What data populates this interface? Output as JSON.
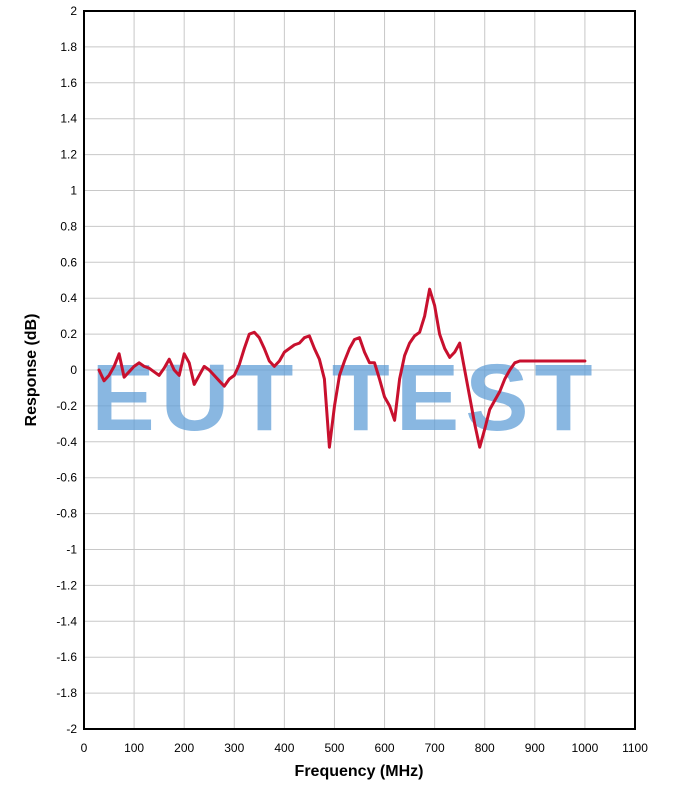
{
  "chart_data": {
    "type": "line",
    "xlabel": "Frequency (MHz)",
    "ylabel": "Response (dB)",
    "xlim": [
      0,
      1100
    ],
    "ylim": [
      -2,
      2
    ],
    "x_ticks": [
      0,
      100,
      200,
      300,
      400,
      500,
      600,
      700,
      800,
      900,
      1000,
      1100
    ],
    "y_ticks": [
      2,
      1.8,
      1.6,
      1.4,
      1.2,
      1,
      0.8,
      0.6,
      0.4,
      0.2,
      0,
      -0.2,
      -0.4,
      -0.6,
      -0.8,
      -1,
      -1.2,
      -1.4,
      -1.6,
      -1.8,
      -2
    ],
    "grid": true,
    "line_color": "#c8102e",
    "series": [
      {
        "x": [
          30,
          40,
          50,
          60,
          70,
          80,
          90,
          100,
          110,
          120,
          130,
          140,
          150,
          160,
          170,
          180,
          190,
          200,
          210,
          220,
          230,
          240,
          250,
          260,
          270,
          280,
          290,
          300,
          310,
          320,
          330,
          340,
          350,
          360,
          370,
          380,
          390,
          400,
          410,
          420,
          430,
          440,
          450,
          460,
          470,
          480,
          490,
          500,
          510,
          520,
          530,
          540,
          550,
          560,
          570,
          580,
          590,
          600,
          610,
          620,
          630,
          640,
          650,
          660,
          670,
          680,
          690,
          700,
          710,
          720,
          730,
          740,
          750,
          760,
          770,
          780,
          790,
          800,
          810,
          820,
          830,
          840,
          850,
          860,
          870,
          880,
          890,
          900,
          910,
          920,
          930,
          940,
          950,
          960,
          970,
          980,
          990,
          1000
        ],
        "values": [
          0.0,
          -0.06,
          -0.03,
          0.02,
          0.09,
          -0.04,
          -0.01,
          0.02,
          0.04,
          0.02,
          0.01,
          -0.01,
          -0.03,
          0.01,
          0.06,
          0.0,
          -0.03,
          0.09,
          0.04,
          -0.08,
          -0.03,
          0.02,
          0.0,
          -0.03,
          -0.06,
          -0.09,
          -0.05,
          -0.03,
          0.03,
          0.12,
          0.2,
          0.21,
          0.18,
          0.12,
          0.05,
          0.02,
          0.05,
          0.1,
          0.12,
          0.14,
          0.15,
          0.18,
          0.19,
          0.12,
          0.06,
          -0.05,
          -0.43,
          -0.2,
          -0.03,
          0.05,
          0.12,
          0.17,
          0.18,
          0.1,
          0.04,
          0.04,
          -0.05,
          -0.15,
          -0.2,
          -0.28,
          -0.05,
          0.08,
          0.15,
          0.19,
          0.21,
          0.3,
          0.45,
          0.36,
          0.2,
          0.12,
          0.07,
          0.1,
          0.15,
          0.0,
          -0.15,
          -0.3,
          -0.43,
          -0.33,
          -0.22,
          -0.17,
          -0.12,
          -0.05,
          0.0,
          0.04,
          0.05,
          0.05,
          0.05,
          0.05,
          0.05,
          0.05,
          0.05,
          0.05,
          0.05,
          0.05,
          0.05,
          0.05,
          0.05,
          0.05
        ]
      }
    ],
    "watermark": "EUT TEST"
  }
}
